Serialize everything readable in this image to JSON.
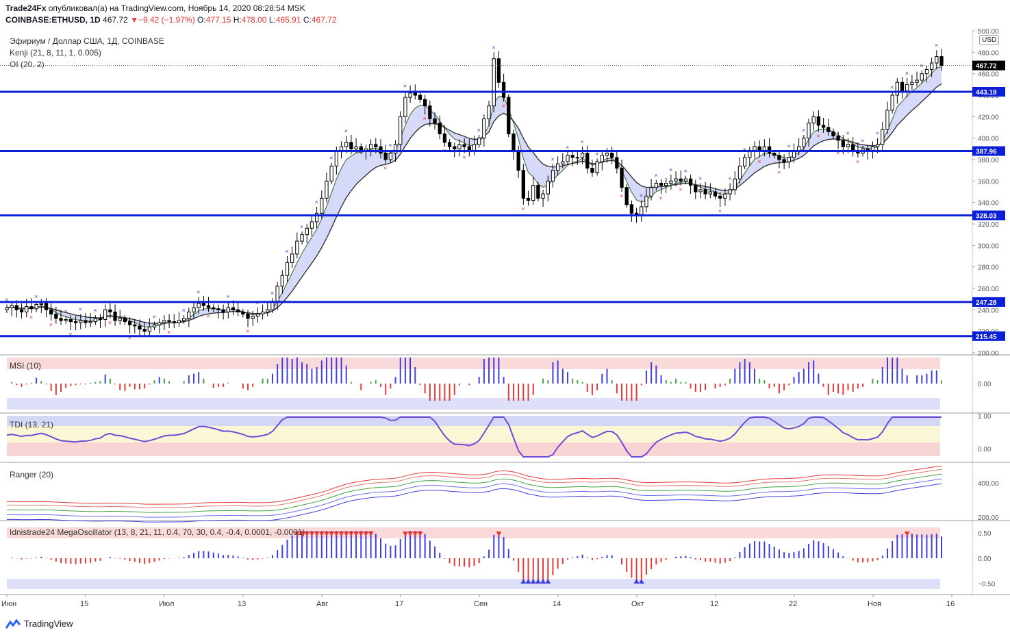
{
  "header": {
    "publisher": "Trade24Fx",
    "published_text": "опубликовал(а) на TradingView.com, Ноябрь 14, 2020 08:28:54 MSK",
    "symbol": "COINBASE:ETHUSD, 1D",
    "last": "467.72",
    "change": "−9.42 (−1.97%)",
    "ohlc": {
      "o_label": "O:",
      "o": "477.15",
      "h_label": "H:",
      "h": "478.00",
      "l_label": "L:",
      "l": "465.91",
      "c_label": "C:",
      "c": "467.72"
    }
  },
  "legend": {
    "title": "Эфириум / Доллар США, 1Д, COINBASE",
    "kenji": "Kenji (21, 8, 11, 1, 0.005)",
    "oi": "OI (20, 2)"
  },
  "currency": "USD",
  "panes": {
    "msi": "MSI (10)",
    "tdi": "TDI (13, 21)",
    "ranger": "Ranger (20)",
    "mega": "Idnistrade24 MegaOscillator (13, 8, 21, 11, 0.4, 70, 30, 0.4, -0.4, 0.0001, -0.0001)"
  },
  "colors": {
    "level_line": "#0a1fd6",
    "bull": "#ffffff",
    "bear": "#000000",
    "hist_blue": "#3f3fe0",
    "hist_red": "#e53935",
    "hist_green": "#43a047",
    "band_fill": "#c8cdf5",
    "sell_zone": "#f6c9c9",
    "price_tag": "#000000"
  },
  "footer": {
    "brand": "TradingView"
  },
  "chart_data": [
    {
      "type": "candlestick",
      "pane": "main",
      "ylim": [
        200,
        500
      ],
      "y_ticks": [
        "500.00",
        "480.00",
        "460.00",
        "440.00",
        "420.00",
        "400.00",
        "380.00",
        "360.00",
        "340.00",
        "320.00",
        "300.00",
        "280.00",
        "260.00",
        "240.00",
        "220.00",
        "200.00"
      ],
      "x_ticks": [
        "Июн",
        "15",
        "Июл",
        "13",
        "Авг",
        "17",
        "Сен",
        "14",
        "Окт",
        "12",
        "22",
        "Ноя",
        "16"
      ],
      "last_price": "467.72",
      "horizontal_levels": [
        "443.19",
        "387.96",
        "328.03",
        "247.28",
        "215.45"
      ],
      "close": [
        242,
        244,
        240,
        238,
        243,
        241,
        245,
        246,
        240,
        236,
        232,
        230,
        231,
        229,
        228,
        230,
        228,
        229,
        232,
        231,
        240,
        238,
        230,
        232,
        229,
        226,
        225,
        222,
        220,
        224,
        226,
        228,
        230,
        229,
        228,
        230,
        232,
        238,
        242,
        246,
        244,
        242,
        241,
        240,
        238,
        242,
        240,
        238,
        236,
        232,
        234,
        236,
        238,
        240,
        248,
        262,
        272,
        284,
        292,
        304,
        310,
        316,
        322,
        330,
        344,
        360,
        374,
        388,
        392,
        396,
        390,
        392,
        388,
        390,
        394,
        392,
        386,
        380,
        386,
        394,
        420,
        438,
        442,
        440,
        436,
        430,
        418,
        414,
        404,
        396,
        392,
        390,
        394,
        392,
        388,
        394,
        400,
        418,
        430,
        474,
        452,
        438,
        404,
        388,
        370,
        344,
        342,
        356,
        344,
        348,
        360,
        370,
        376,
        378,
        384,
        382,
        382,
        386,
        372,
        368,
        378,
        384,
        386,
        382,
        372,
        354,
        338,
        330,
        328,
        336,
        346,
        354,
        358,
        356,
        358,
        360,
        362,
        360,
        362,
        356,
        350,
        352,
        348,
        350,
        346,
        344,
        348,
        352,
        362,
        374,
        382,
        388,
        392,
        388,
        392,
        386,
        384,
        380,
        378,
        382,
        388,
        392,
        400,
        414,
        420,
        412,
        410,
        406,
        402,
        398,
        392,
        394,
        388,
        386,
        390,
        388,
        392,
        394,
        408,
        426,
        440,
        452,
        444,
        450,
        452,
        454,
        460,
        464,
        470,
        476,
        467.72
      ]
    },
    {
      "type": "bar",
      "pane": "MSI (10)",
      "y_ticks": [
        "0.00"
      ]
    },
    {
      "type": "line",
      "pane": "TDI (13, 21)",
      "y_ticks": [
        "1.00",
        "0.00"
      ]
    },
    {
      "type": "line",
      "pane": "Ranger (20)",
      "y_ticks": [
        "400.00",
        "200.00"
      ]
    },
    {
      "type": "bar",
      "pane": "Idnistrade24 MegaOscillator",
      "y_ticks": [
        "0.50",
        "0.00",
        "−0.50"
      ]
    }
  ]
}
